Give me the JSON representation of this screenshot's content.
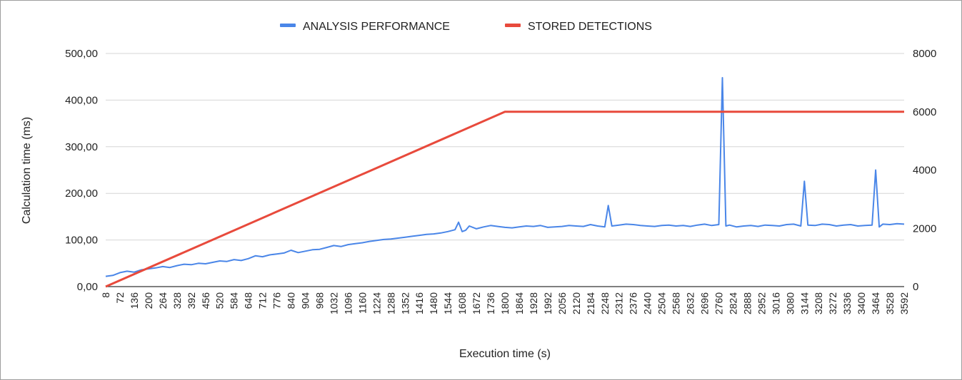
{
  "chart_data": {
    "type": "line",
    "title": "",
    "xlabel": "Execution time (s)",
    "ylabel": "Calculation time (ms)",
    "y2label": "",
    "ylim": [
      0,
      500
    ],
    "y2lim": [
      0,
      8000
    ],
    "y_ticks": [
      "0,00",
      "100,00",
      "200,00",
      "300,00",
      "400,00",
      "500,00"
    ],
    "y2_ticks": [
      "0",
      "2000",
      "4000",
      "6000",
      "8000"
    ],
    "x_ticks": [
      "8",
      "72",
      "136",
      "200",
      "264",
      "328",
      "392",
      "456",
      "520",
      "584",
      "648",
      "712",
      "776",
      "840",
      "904",
      "968",
      "1032",
      "1096",
      "1160",
      "1224",
      "1288",
      "1352",
      "1416",
      "1480",
      "1544",
      "1608",
      "1672",
      "1736",
      "1800",
      "1864",
      "1928",
      "1992",
      "2056",
      "2120",
      "2184",
      "2248",
      "2312",
      "2376",
      "2440",
      "2504",
      "2568",
      "2632",
      "2696",
      "2760",
      "2824",
      "2888",
      "2952",
      "3016",
      "3080",
      "3144",
      "3208",
      "3272",
      "3336",
      "3400",
      "3464",
      "3528",
      "3592"
    ],
    "legend_position": "top",
    "grid": true,
    "series": [
      {
        "name": "ANALYSIS PERFORMANCE",
        "axis": "left",
        "color": "#4a86e8",
        "x": [
          8,
          40,
          72,
          104,
          136,
          168,
          200,
          232,
          264,
          296,
          328,
          360,
          392,
          424,
          456,
          488,
          520,
          552,
          584,
          616,
          648,
          680,
          712,
          744,
          776,
          808,
          840,
          872,
          904,
          936,
          968,
          1000,
          1032,
          1064,
          1096,
          1128,
          1160,
          1192,
          1224,
          1256,
          1288,
          1320,
          1352,
          1384,
          1416,
          1448,
          1480,
          1512,
          1544,
          1576,
          1592,
          1608,
          1624,
          1640,
          1672,
          1704,
          1736,
          1768,
          1800,
          1832,
          1864,
          1896,
          1928,
          1960,
          1992,
          2024,
          2056,
          2088,
          2120,
          2152,
          2184,
          2216,
          2248,
          2264,
          2280,
          2312,
          2344,
          2376,
          2408,
          2440,
          2472,
          2504,
          2536,
          2568,
          2600,
          2632,
          2664,
          2696,
          2728,
          2760,
          2776,
          2792,
          2808,
          2840,
          2872,
          2904,
          2936,
          2968,
          3000,
          3032,
          3064,
          3096,
          3128,
          3144,
          3160,
          3192,
          3224,
          3256,
          3288,
          3320,
          3352,
          3384,
          3416,
          3448,
          3464,
          3480,
          3496,
          3528,
          3560,
          3592
        ],
        "values": [
          22,
          24,
          30,
          33,
          31,
          36,
          38,
          40,
          43,
          41,
          45,
          48,
          47,
          50,
          49,
          52,
          55,
          54,
          58,
          56,
          60,
          66,
          64,
          68,
          70,
          72,
          78,
          73,
          76,
          79,
          80,
          84,
          88,
          86,
          90,
          92,
          94,
          97,
          99,
          101,
          102,
          104,
          106,
          108,
          110,
          112,
          113,
          115,
          118,
          122,
          138,
          118,
          121,
          130,
          124,
          128,
          131,
          129,
          127,
          126,
          128,
          130,
          129,
          131,
          127,
          128,
          129,
          131,
          130,
          129,
          133,
          130,
          128,
          174,
          130,
          132,
          134,
          133,
          131,
          130,
          129,
          131,
          132,
          130,
          131,
          129,
          132,
          134,
          131,
          133,
          448,
          130,
          132,
          128,
          130,
          131,
          129,
          132,
          131,
          130,
          133,
          134,
          130,
          226,
          132,
          131,
          134,
          133,
          130,
          132,
          133,
          130,
          131,
          132,
          250,
          128,
          134,
          133,
          135,
          134
        ]
      },
      {
        "name": "STORED DETECTIONS",
        "axis": "right",
        "color": "#e84a3c",
        "x": [
          8,
          1800,
          3592
        ],
        "values": [
          0,
          6000,
          6000
        ]
      }
    ]
  }
}
